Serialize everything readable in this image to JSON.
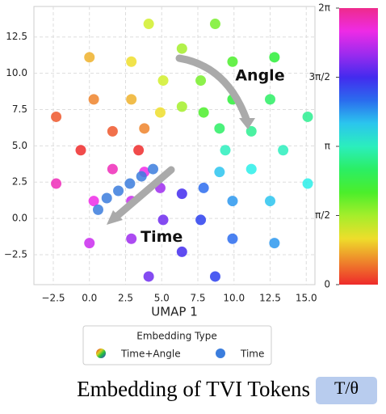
{
  "chart_data": {
    "type": "scatter",
    "xlabel": "UMAP 1",
    "xlim": [
      -3.84,
      15.6
    ],
    "ylim": [
      -4.56,
      14.6
    ],
    "xticks": [
      {
        "value": -2.5,
        "label": "−2.5"
      },
      {
        "value": 0,
        "label": "0.0"
      },
      2.5,
      {
        "value": 5,
        "label": "5.0"
      },
      7.5,
      {
        "value": 10,
        "label": "10.0"
      },
      12.5,
      {
        "value": 15,
        "label": "15.0"
      }
    ],
    "yticks": [
      {
        "value": -2.5,
        "label": "−2.5"
      },
      {
        "value": 0,
        "label": "0.0"
      },
      2.5,
      {
        "value": 5,
        "label": "5.0"
      },
      7.5,
      {
        "value": 10,
        "label": "10.0"
      },
      12.5
    ],
    "grid": true,
    "colormap": "hsv",
    "clim": [
      0,
      6.2832
    ],
    "cticks": [
      {
        "value": 0,
        "label": "0"
      },
      {
        "value": 1.5708,
        "label": "π/2"
      },
      {
        "value": 3.1416,
        "label": "π"
      },
      {
        "value": 4.7124,
        "label": "3π/2"
      },
      {
        "value": 6.2832,
        "label": "2π"
      }
    ],
    "legend_title": "Embedding Type",
    "legend_position": "bottom",
    "series": [
      {
        "name": "Time+Angle",
        "x": [
          9.4,
          9.0,
          7.9,
          6.4,
          4.9,
          3.8,
          3.4,
          3.8,
          4.9,
          6.4,
          7.9,
          9.0,
          11.2,
          9.9,
          7.7,
          5.1,
          2.9,
          1.6,
          1.6,
          2.9,
          5.1,
          7.7,
          9.9,
          11.2,
          13.4,
          12.5,
          9.9,
          6.4,
          2.9,
          0.3,
          -0.6,
          0.3,
          2.9,
          6.4,
          9.9,
          12.5,
          15.1,
          12.8,
          8.7,
          4.1,
          0.0,
          -2.3,
          -2.3,
          0.0,
          4.1,
          8.7,
          12.8,
          15.1
        ],
        "y": [
          4.7,
          6.2,
          7.3,
          7.7,
          7.3,
          6.2,
          4.7,
          3.2,
          2.1,
          1.7,
          2.1,
          3.2,
          6.0,
          8.2,
          9.5,
          9.5,
          8.2,
          6.0,
          3.4,
          1.2,
          -0.1,
          -0.1,
          1.2,
          3.4,
          4.7,
          8.2,
          10.8,
          11.7,
          10.8,
          8.2,
          4.7,
          1.2,
          -1.4,
          -2.3,
          -1.4,
          1.2,
          7.0,
          11.1,
          13.4,
          13.4,
          11.1,
          7.0,
          2.4,
          -1.7,
          -4.0,
          -4.0,
          -1.7,
          2.4
        ],
        "c": [
          3.14,
          2.62,
          2.09,
          1.57,
          1.05,
          0.52,
          0,
          5.76,
          5.24,
          4.71,
          4.19,
          3.67,
          2.88,
          2.36,
          1.83,
          1.31,
          0.79,
          0.26,
          6.02,
          5.5,
          4.97,
          4.45,
          3.93,
          3.4,
          3.14,
          2.62,
          2.09,
          1.57,
          1.05,
          0.52,
          0,
          5.76,
          5.24,
          4.71,
          4.19,
          3.67,
          2.88,
          2.36,
          1.83,
          1.31,
          0.79,
          0.26,
          6.02,
          5.5,
          4.97,
          4.45,
          3.93,
          3.4
        ]
      },
      {
        "name": "Time",
        "color": "#3b7ddd",
        "x": [
          4.4,
          3.6,
          2.8,
          2.0,
          1.2,
          0.6
        ],
        "y": [
          3.4,
          2.9,
          2.4,
          1.9,
          1.4,
          0.6
        ]
      }
    ],
    "annotations": [
      {
        "text": "Angle",
        "x": 11.8,
        "y": 9.8
      },
      {
        "text": "Time",
        "x": 5.0,
        "y": -1.3
      }
    ],
    "caption": "Embedding of TVI Tokens",
    "caption_symbol": "T/θ"
  }
}
